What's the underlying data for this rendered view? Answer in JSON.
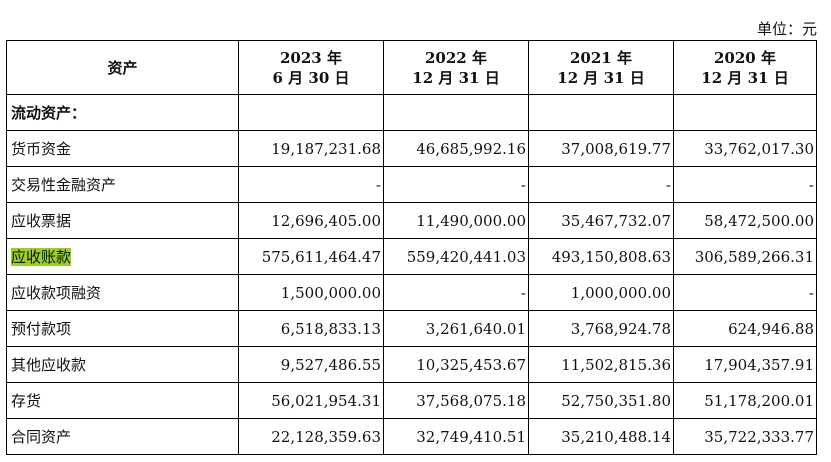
{
  "unit_label": "单位：元",
  "header": {
    "asset": "资产",
    "periods": [
      {
        "year": "2023 年",
        "date": "6 月 30 日"
      },
      {
        "year": "2022 年",
        "date": "12 月 31 日"
      },
      {
        "year": "2021 年",
        "date": "12 月 31 日"
      },
      {
        "year": "2020 年",
        "date": "12 月 31 日"
      }
    ]
  },
  "section_title": "流动资产：",
  "rows": [
    {
      "label": "货币资金",
      "values": [
        "19,187,231.68",
        "46,685,992.16",
        "37,008,619.77",
        "33,762,017.30"
      ]
    },
    {
      "label": "交易性金融资产",
      "values": [
        "-",
        "-",
        "-",
        "-"
      ]
    },
    {
      "label": "应收票据",
      "values": [
        "12,696,405.00",
        "11,490,000.00",
        "35,467,732.07",
        "58,472,500.00"
      ]
    },
    {
      "label": "应收账款",
      "highlight": true,
      "values": [
        "575,611,464.47",
        "559,420,441.03",
        "493,150,808.63",
        "306,589,266.31"
      ]
    },
    {
      "label": "应收款项融资",
      "values": [
        "1,500,000.00",
        "-",
        "1,000,000.00",
        "-"
      ]
    },
    {
      "label": "预付款项",
      "values": [
        "6,518,833.13",
        "3,261,640.01",
        "3,768,924.78",
        "624,946.88"
      ]
    },
    {
      "label": "其他应收款",
      "values": [
        "9,527,486.55",
        "10,325,453.67",
        "11,502,815.36",
        "17,904,357.91"
      ]
    },
    {
      "label": "存货",
      "values": [
        "56,021,954.31",
        "37,568,075.18",
        "52,750,351.80",
        "51,178,200.01"
      ]
    },
    {
      "label": "合同资产",
      "values": [
        "22,128,359.63",
        "32,749,410.51",
        "35,210,488.14",
        "35,722,333.77"
      ]
    }
  ],
  "highlight_color": "#9bd11e"
}
